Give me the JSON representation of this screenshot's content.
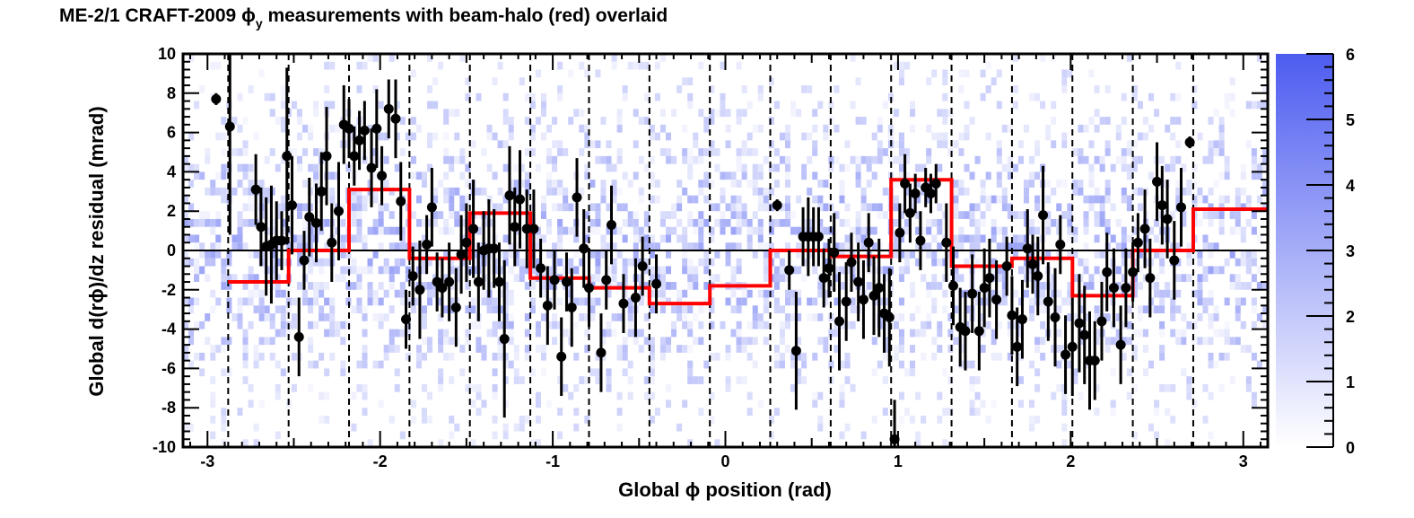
{
  "chart_data": {
    "type": "scatter",
    "title": "ME-2/1 CRAFT-2009 ϕy measurements with beam-halo (red) overlaid",
    "title_parts": {
      "before": "ME-2/1 CRAFT-2009 ",
      "phi": "ϕ",
      "sub": "y",
      "after": " measurements with beam-halo (red) overlaid"
    },
    "xlabel": "Global ϕ position (rad)",
    "xlabel_parts": {
      "before": "Global ",
      "phi": "ϕ",
      "after": " position (rad)"
    },
    "ylabel": "Global d(rϕ)/dz residual (mrad)",
    "ylabel_parts": {
      "before": "Global d(r",
      "phi": "ϕ",
      "after": ")/dz residual (mrad)"
    },
    "xlim": [
      -3.1416,
      3.1416
    ],
    "ylim": [
      -10,
      10
    ],
    "x_ticks": [
      "-3",
      "-2",
      "-1",
      "0",
      "1",
      "2",
      "3"
    ],
    "y_ticks": [
      "-10",
      "-8",
      "-6",
      "-4",
      "-2",
      "0",
      "2",
      "4",
      "6",
      "8",
      "10"
    ],
    "colorbar": {
      "range": [
        0,
        6
      ],
      "ticks": [
        "0",
        "1",
        "2",
        "3",
        "4",
        "5",
        "6"
      ],
      "low_color": "#ffffff",
      "high_color": "#4d5cf0"
    },
    "zero_line": true,
    "chamber_boundaries": [
      -2.88,
      -2.53,
      -2.18,
      -1.83,
      -1.48,
      -1.13,
      -0.79,
      -0.44,
      -0.09,
      0.26,
      0.61,
      0.96,
      1.31,
      1.66,
      2.01,
      2.36,
      2.71
    ],
    "beam_halo": {
      "color": "#ff0000",
      "steps": [
        {
          "x0": -2.88,
          "x1": -2.53,
          "y": -1.6
        },
        {
          "x0": -2.53,
          "x1": -2.18,
          "y": 0.0
        },
        {
          "x0": -2.18,
          "x1": -1.83,
          "y": 3.1
        },
        {
          "x0": -1.83,
          "x1": -1.48,
          "y": -0.4
        },
        {
          "x0": -1.48,
          "x1": -1.13,
          "y": 1.9
        },
        {
          "x0": -1.13,
          "x1": -0.79,
          "y": -1.4
        },
        {
          "x0": -0.79,
          "x1": -0.44,
          "y": -1.9
        },
        {
          "x0": -0.44,
          "x1": -0.09,
          "y": -2.7
        },
        {
          "x0": -0.09,
          "x1": 0.26,
          "y": -1.8
        },
        {
          "x0": 0.26,
          "x1": 0.61,
          "y": 0.0
        },
        {
          "x0": 0.61,
          "x1": 0.96,
          "y": -0.3
        },
        {
          "x0": 0.96,
          "x1": 1.31,
          "y": 3.6
        },
        {
          "x0": 1.31,
          "x1": 1.66,
          "y": -0.8
        },
        {
          "x0": 1.66,
          "x1": 2.01,
          "y": -0.4
        },
        {
          "x0": 2.01,
          "x1": 2.36,
          "y": -2.3
        },
        {
          "x0": 2.36,
          "x1": 2.71,
          "y": 0.0
        },
        {
          "x0": 2.71,
          "x1": 3.1416,
          "y": 2.1
        }
      ]
    },
    "points": [
      {
        "x": -2.95,
        "y": 7.7,
        "e": 0.3
      },
      {
        "x": -2.87,
        "y": 6.3,
        "e": 5.5
      },
      {
        "x": -2.72,
        "y": 3.1,
        "e": 1.8
      },
      {
        "x": -2.69,
        "y": 1.2,
        "e": 2.0
      },
      {
        "x": -2.66,
        "y": 0.2,
        "e": 2.5
      },
      {
        "x": -2.63,
        "y": 0.3,
        "e": 3.0
      },
      {
        "x": -2.6,
        "y": 0.5,
        "e": 2.0
      },
      {
        "x": -2.57,
        "y": 0.5,
        "e": 1.5
      },
      {
        "x": -2.54,
        "y": 4.8,
        "e": 4.5
      },
      {
        "x": -2.51,
        "y": 2.3,
        "e": 2.5
      },
      {
        "x": -2.47,
        "y": -4.4,
        "e": 2.0
      },
      {
        "x": -2.44,
        "y": -0.5,
        "e": 1.5
      },
      {
        "x": -2.41,
        "y": 1.7,
        "e": 2.0
      },
      {
        "x": -2.37,
        "y": 1.4,
        "e": 2.0
      },
      {
        "x": -2.34,
        "y": 3.0,
        "e": 2.0
      },
      {
        "x": -2.31,
        "y": 4.8,
        "e": 2.5
      },
      {
        "x": -2.28,
        "y": 0.4,
        "e": 2.0
      },
      {
        "x": -2.24,
        "y": 2.0,
        "e": 2.5
      },
      {
        "x": -2.21,
        "y": 6.4,
        "e": 2.0
      },
      {
        "x": -2.18,
        "y": 6.2,
        "e": 1.5
      },
      {
        "x": -2.15,
        "y": 4.8,
        "e": 1.5
      },
      {
        "x": -2.12,
        "y": 5.6,
        "e": 1.5
      },
      {
        "x": -2.09,
        "y": 6.1,
        "e": 1.5
      },
      {
        "x": -2.05,
        "y": 4.2,
        "e": 2.0
      },
      {
        "x": -2.02,
        "y": 6.2,
        "e": 2.0
      },
      {
        "x": -1.99,
        "y": 3.8,
        "e": 1.5
      },
      {
        "x": -1.95,
        "y": 7.2,
        "e": 1.5
      },
      {
        "x": -1.91,
        "y": 6.7,
        "e": 2.0
      },
      {
        "x": -1.88,
        "y": 2.5,
        "e": 2.0
      },
      {
        "x": -1.85,
        "y": -3.5,
        "e": 1.5
      },
      {
        "x": -1.81,
        "y": -1.3,
        "e": 1.5
      },
      {
        "x": -1.77,
        "y": -2.0,
        "e": 2.5
      },
      {
        "x": -1.73,
        "y": 0.3,
        "e": 1.5
      },
      {
        "x": -1.7,
        "y": 2.2,
        "e": 2.0
      },
      {
        "x": -1.67,
        "y": -1.6,
        "e": 1.5
      },
      {
        "x": -1.64,
        "y": -1.9,
        "e": 1.5
      },
      {
        "x": -1.6,
        "y": -1.6,
        "e": 2.0
      },
      {
        "x": -1.56,
        "y": -2.9,
        "e": 2.0
      },
      {
        "x": -1.53,
        "y": -0.2,
        "e": 2.0
      },
      {
        "x": -1.5,
        "y": 0.4,
        "e": 2.0
      },
      {
        "x": -1.46,
        "y": 1.1,
        "e": 2.5
      },
      {
        "x": -1.43,
        "y": -1.6,
        "e": 2.0
      },
      {
        "x": -1.4,
        "y": 0.0,
        "e": 2.0
      },
      {
        "x": -1.37,
        "y": 0.1,
        "e": 2.5
      },
      {
        "x": -1.34,
        "y": 0.1,
        "e": 2.0
      },
      {
        "x": -1.31,
        "y": -1.6,
        "e": 2.0
      },
      {
        "x": -1.28,
        "y": -4.5,
        "e": 4.0
      },
      {
        "x": -1.25,
        "y": 2.8,
        "e": 2.5
      },
      {
        "x": -1.22,
        "y": 1.2,
        "e": 2.0
      },
      {
        "x": -1.19,
        "y": 2.6,
        "e": 2.5
      },
      {
        "x": -1.15,
        "y": 1.1,
        "e": 2.0
      },
      {
        "x": -1.11,
        "y": 1.1,
        "e": 2.0
      },
      {
        "x": -1.07,
        "y": -0.9,
        "e": 1.5
      },
      {
        "x": -1.03,
        "y": -2.8,
        "e": 2.0
      },
      {
        "x": -0.99,
        "y": -1.5,
        "e": 1.5
      },
      {
        "x": -0.95,
        "y": -5.4,
        "e": 2.0
      },
      {
        "x": -0.92,
        "y": -1.6,
        "e": 1.5
      },
      {
        "x": -0.89,
        "y": -2.9,
        "e": 2.0
      },
      {
        "x": -0.86,
        "y": 2.7,
        "e": 2.0
      },
      {
        "x": -0.82,
        "y": 0.1,
        "e": 2.0
      },
      {
        "x": -0.79,
        "y": -1.9,
        "e": 2.0
      },
      {
        "x": -0.72,
        "y": -5.2,
        "e": 2.0
      },
      {
        "x": -0.69,
        "y": -1.5,
        "e": 1.5
      },
      {
        "x": -0.66,
        "y": 1.3,
        "e": 2.0
      },
      {
        "x": -0.59,
        "y": -2.7,
        "e": 1.5
      },
      {
        "x": -0.52,
        "y": -2.4,
        "e": 2.0
      },
      {
        "x": -0.48,
        "y": -0.8,
        "e": 1.5
      },
      {
        "x": -0.4,
        "y": -1.7,
        "e": 1.5
      },
      {
        "x": 0.3,
        "y": 2.3,
        "e": 0.3
      },
      {
        "x": 0.37,
        "y": -1.0,
        "e": 1.0
      },
      {
        "x": 0.41,
        "y": -5.1,
        "e": 3.0
      },
      {
        "x": 0.45,
        "y": 0.7,
        "e": 1.5
      },
      {
        "x": 0.48,
        "y": 0.7,
        "e": 2.0
      },
      {
        "x": 0.51,
        "y": 0.7,
        "e": 1.5
      },
      {
        "x": 0.54,
        "y": 0.7,
        "e": 1.5
      },
      {
        "x": 0.57,
        "y": -1.4,
        "e": 1.5
      },
      {
        "x": 0.6,
        "y": -0.9,
        "e": 1.5
      },
      {
        "x": 0.63,
        "y": -0.1,
        "e": 2.0
      },
      {
        "x": 0.66,
        "y": -3.6,
        "e": 2.5
      },
      {
        "x": 0.7,
        "y": -2.6,
        "e": 2.0
      },
      {
        "x": 0.73,
        "y": -0.6,
        "e": 1.5
      },
      {
        "x": 0.77,
        "y": -1.6,
        "e": 2.0
      },
      {
        "x": 0.8,
        "y": -2.5,
        "e": 2.0
      },
      {
        "x": 0.83,
        "y": 0.4,
        "e": 1.5
      },
      {
        "x": 0.86,
        "y": -2.3,
        "e": 2.0
      },
      {
        "x": 0.89,
        "y": -1.9,
        "e": 2.5
      },
      {
        "x": 0.92,
        "y": -3.2,
        "e": 2.0
      },
      {
        "x": 0.95,
        "y": -3.4,
        "e": 2.5
      },
      {
        "x": 0.98,
        "y": -9.6,
        "e": 2.0
      },
      {
        "x": 1.01,
        "y": 0.9,
        "e": 1.5
      },
      {
        "x": 1.04,
        "y": 3.4,
        "e": 1.5
      },
      {
        "x": 1.07,
        "y": 1.9,
        "e": 1.5
      },
      {
        "x": 1.1,
        "y": 2.9,
        "e": 1.0
      },
      {
        "x": 1.13,
        "y": 0.5,
        "e": 1.5
      },
      {
        "x": 1.16,
        "y": 3.2,
        "e": 1.0
      },
      {
        "x": 1.19,
        "y": 2.9,
        "e": 1.0
      },
      {
        "x": 1.22,
        "y": 3.4,
        "e": 1.0
      },
      {
        "x": 1.28,
        "y": 0.4,
        "e": 2.0
      },
      {
        "x": 1.32,
        "y": -1.8,
        "e": 2.0
      },
      {
        "x": 1.36,
        "y": -3.9,
        "e": 2.0
      },
      {
        "x": 1.39,
        "y": -4.1,
        "e": 2.0
      },
      {
        "x": 1.43,
        "y": -2.2,
        "e": 2.0
      },
      {
        "x": 1.47,
        "y": -4.1,
        "e": 2.0
      },
      {
        "x": 1.5,
        "y": -1.9,
        "e": 2.0
      },
      {
        "x": 1.53,
        "y": -1.4,
        "e": 2.0
      },
      {
        "x": 1.57,
        "y": -2.5,
        "e": 2.0
      },
      {
        "x": 1.63,
        "y": -0.8,
        "e": 1.5
      },
      {
        "x": 1.66,
        "y": -3.3,
        "e": 2.0
      },
      {
        "x": 1.69,
        "y": -4.9,
        "e": 2.0
      },
      {
        "x": 1.72,
        "y": -3.5,
        "e": 2.0
      },
      {
        "x": 1.75,
        "y": 0.1,
        "e": 2.0
      },
      {
        "x": 1.78,
        "y": -0.7,
        "e": 1.5
      },
      {
        "x": 1.81,
        "y": -1.3,
        "e": 2.0
      },
      {
        "x": 1.84,
        "y": 1.8,
        "e": 2.5
      },
      {
        "x": 1.87,
        "y": -2.6,
        "e": 2.0
      },
      {
        "x": 1.91,
        "y": -3.4,
        "e": 2.5
      },
      {
        "x": 1.94,
        "y": 0.3,
        "e": 1.5
      },
      {
        "x": 1.97,
        "y": -5.3,
        "e": 2.0
      },
      {
        "x": 2.01,
        "y": -4.9,
        "e": 2.5
      },
      {
        "x": 2.05,
        "y": -3.7,
        "e": 2.5
      },
      {
        "x": 2.08,
        "y": -4.3,
        "e": 2.5
      },
      {
        "x": 2.11,
        "y": -5.6,
        "e": 2.5
      },
      {
        "x": 2.14,
        "y": -5.6,
        "e": 2.0
      },
      {
        "x": 2.18,
        "y": -3.6,
        "e": 2.0
      },
      {
        "x": 2.21,
        "y": -1.1,
        "e": 2.0
      },
      {
        "x": 2.25,
        "y": -1.9,
        "e": 2.0
      },
      {
        "x": 2.29,
        "y": -4.8,
        "e": 2.0
      },
      {
        "x": 2.32,
        "y": -1.9,
        "e": 2.0
      },
      {
        "x": 2.36,
        "y": -1.1,
        "e": 1.5
      },
      {
        "x": 2.39,
        "y": 0.4,
        "e": 1.5
      },
      {
        "x": 2.43,
        "y": 1.1,
        "e": 2.0
      },
      {
        "x": 2.46,
        "y": -1.4,
        "e": 2.0
      },
      {
        "x": 2.5,
        "y": 3.5,
        "e": 2.0
      },
      {
        "x": 2.53,
        "y": 2.3,
        "e": 2.0
      },
      {
        "x": 2.56,
        "y": 1.6,
        "e": 2.0
      },
      {
        "x": 2.6,
        "y": -0.5,
        "e": 2.0
      },
      {
        "x": 2.64,
        "y": 2.2,
        "e": 2.0
      },
      {
        "x": 2.69,
        "y": 5.5,
        "e": 0.3
      }
    ]
  }
}
